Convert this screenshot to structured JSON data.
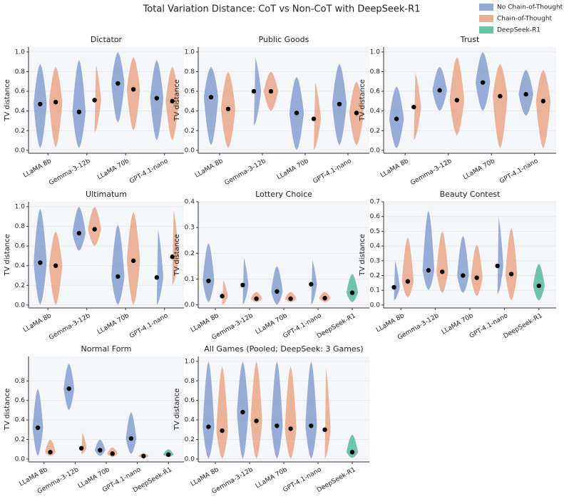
{
  "title": "Total Variation Distance: CoT vs Non-CoT with DeepSeek-R1",
  "legend": [
    {
      "name": "No Chain-of-Thought",
      "color": "#7f9bcf"
    },
    {
      "name": "Chain-of-Thought",
      "color": "#e8a281"
    },
    {
      "name": "DeepSeek-R1",
      "color": "#4fb896"
    }
  ],
  "chart_data": [
    {
      "type": "violin",
      "title": "Dictator",
      "ylabel": "TV distance",
      "grid": true,
      "categories": [
        "LLaMA 8b",
        "Gemma-3-12b",
        "LLaMA 70b",
        "GPT-4.1-nano"
      ],
      "ylim": [
        -0.03,
        1.05
      ],
      "yticks": [
        {
          "value": 0,
          "label": "0.0"
        },
        0.2,
        0.4,
        0.6,
        0.8,
        {
          "value": 1,
          "label": "1.0"
        }
      ],
      "series": [
        {
          "values": [
            0.47,
            0.39,
            0.68,
            0.53
          ],
          "mins": [
            0.02,
            0.02,
            0.28,
            0.1
          ],
          "maxs": [
            0.88,
            0.92,
            1.0,
            0.92
          ]
        },
        {
          "values": [
            0.49,
            0.51,
            0.62,
            0.5
          ],
          "mins": [
            0.03,
            0.18,
            0.2,
            0.1
          ],
          "maxs": [
            0.85,
            0.9,
            0.95,
            0.85
          ]
        }
      ]
    },
    {
      "type": "violin",
      "title": "Public Goods",
      "ylabel": "TV distance",
      "grid": true,
      "categories": [
        "LLaMA 8b",
        "Gemma-3-12b",
        "LLaMA 70b",
        "GPT-4.1-nano"
      ],
      "ylim": [
        -0.03,
        1.05
      ],
      "yticks": [
        {
          "value": 0,
          "label": "0.0"
        },
        0.2,
        0.4,
        0.6,
        0.8,
        {
          "value": 1,
          "label": "1.0"
        }
      ],
      "series": [
        {
          "values": [
            0.54,
            0.6,
            0.38,
            0.47
          ],
          "mins": [
            0.05,
            0.25,
            0.0,
            0.05
          ],
          "maxs": [
            0.85,
            0.97,
            0.75,
            0.88
          ]
        },
        {
          "values": [
            0.42,
            0.6,
            0.32,
            0.38
          ],
          "mins": [
            0.02,
            0.4,
            0.0,
            0.05
          ],
          "maxs": [
            0.8,
            0.8,
            0.72,
            0.7
          ]
        }
      ]
    },
    {
      "type": "violin",
      "title": "Trust",
      "ylabel": "TV distance",
      "grid": true,
      "categories": [
        "LLaMA 8b",
        "Gemma-3-12b",
        "LLaMA 70b",
        "GPT-4.1-nano"
      ],
      "ylim": [
        -0.03,
        1.05
      ],
      "yticks": [
        {
          "value": 0,
          "label": "0.0"
        },
        0.2,
        0.4,
        0.6,
        0.8,
        {
          "value": 1,
          "label": "1.0"
        }
      ],
      "series": [
        {
          "values": [
            0.32,
            0.61,
            0.69,
            0.57
          ],
          "mins": [
            0.02,
            0.4,
            0.4,
            0.35
          ],
          "maxs": [
            0.65,
            0.85,
            1.0,
            0.82
          ]
        },
        {
          "values": [
            0.44,
            0.51,
            0.55,
            0.5
          ],
          "mins": [
            0.1,
            0.15,
            0.02,
            0.02
          ],
          "maxs": [
            0.82,
            0.95,
            0.88,
            0.82
          ]
        }
      ]
    },
    {
      "type": "violin",
      "title": "Ultimatum",
      "ylabel": "TV distance",
      "grid": true,
      "categories": [
        "LLaMA 8b",
        "Gemma-3-12b",
        "LLaMA 70b",
        "GPT-4.1-nano"
      ],
      "ylim": [
        -0.03,
        1.05
      ],
      "yticks": [
        {
          "value": 0,
          "label": "0.0"
        },
        0.2,
        0.4,
        0.6,
        0.8,
        {
          "value": 1,
          "label": "1.0"
        }
      ],
      "series": [
        {
          "values": [
            0.43,
            0.73,
            0.29,
            0.28
          ],
          "mins": [
            0.0,
            0.55,
            0.0,
            0.0
          ],
          "maxs": [
            0.98,
            1.0,
            0.82,
            0.8
          ]
        },
        {
          "values": [
            0.4,
            0.77,
            0.45,
            0.49
          ],
          "mins": [
            0.0,
            0.6,
            0.0,
            0.2
          ],
          "maxs": [
            0.75,
            1.0,
            0.95,
            1.0
          ]
        }
      ]
    },
    {
      "type": "violin",
      "title": "Lottery Choice",
      "ylabel": "TV distance",
      "grid": true,
      "categories": [
        "LLaMA 8b",
        "Gemma-3-12b",
        "LLaMA 70b",
        "GPT-4.1-nano",
        "DeepSeek-R1"
      ],
      "ylim": [
        -0.012,
        0.4
      ],
      "yticks": [
        {
          "value": 0,
          "label": "0.0"
        },
        0.1,
        0.2,
        0.3,
        0.4
      ],
      "series": [
        {
          "values": [
            0.093,
            0.077,
            0.052,
            0.08,
            null
          ],
          "mins": [
            0.01,
            0.0,
            0.0,
            0.0,
            null
          ],
          "maxs": [
            0.24,
            0.19,
            0.15,
            0.18,
            null
          ]
        },
        {
          "values": [
            0.034,
            0.024,
            0.024,
            0.026,
            null
          ],
          "mins": [
            0.0,
            0.01,
            0.01,
            0.01,
            null
          ],
          "maxs": [
            0.1,
            0.05,
            0.05,
            0.05,
            null
          ]
        },
        {
          "values": [
            null,
            null,
            null,
            null,
            0.047
          ],
          "mins": [
            null,
            null,
            null,
            null,
            0.01
          ],
          "maxs": [
            null,
            null,
            null,
            null,
            0.12
          ]
        }
      ]
    },
    {
      "type": "violin",
      "title": "Beauty Contest",
      "ylabel": "TV distance",
      "grid": true,
      "categories": [
        "LLaMA 8b",
        "Gemma-3-12b",
        "LLaMA 70b",
        "GPT-4.1-nano",
        "DeepSeek-R1"
      ],
      "ylim": [
        -0.02,
        0.7
      ],
      "yticks": [
        {
          "value": 0,
          "label": "0.0"
        },
        0.1,
        0.2,
        0.3,
        0.4,
        0.5,
        0.6,
        0.7
      ],
      "series": [
        {
          "values": [
            0.12,
            0.235,
            0.2,
            0.265,
            null
          ],
          "mins": [
            0.03,
            0.1,
            0.08,
            0.07,
            null
          ],
          "maxs": [
            0.31,
            0.64,
            0.47,
            0.62,
            null
          ]
        },
        {
          "values": [
            0.16,
            0.225,
            0.185,
            0.21,
            null
          ],
          "mins": [
            0.05,
            0.08,
            0.06,
            0.03,
            null
          ],
          "maxs": [
            0.46,
            0.5,
            0.41,
            0.52,
            null
          ]
        },
        {
          "values": [
            null,
            null,
            null,
            null,
            0.13
          ],
          "mins": [
            null,
            null,
            null,
            null,
            0.03
          ],
          "maxs": [
            null,
            null,
            null,
            null,
            0.28
          ]
        }
      ]
    },
    {
      "type": "violin",
      "title": "Normal Form",
      "ylabel": "TV distance",
      "grid": true,
      "categories": [
        "LLaMA 8b",
        "Gemma-3-12b",
        "LLaMA 70b",
        "GPT-4.1-nano",
        "DeepSeek-R1"
      ],
      "ylim": [
        -0.03,
        1.05
      ],
      "yticks": [
        {
          "value": 0,
          "label": "0.0"
        },
        0.2,
        0.4,
        0.6,
        0.8
      ],
      "series": [
        {
          "values": [
            0.32,
            0.72,
            0.09,
            0.21,
            null
          ],
          "mins": [
            0.03,
            0.5,
            0.03,
            0.05,
            null
          ],
          "maxs": [
            0.72,
            0.98,
            0.2,
            0.48,
            null
          ]
        },
        {
          "values": [
            0.07,
            0.11,
            0.055,
            0.03,
            null
          ],
          "mins": [
            0.03,
            0.05,
            0.02,
            0.01,
            null
          ],
          "maxs": [
            0.2,
            0.28,
            0.12,
            0.06,
            null
          ]
        },
        {
          "values": [
            null,
            null,
            null,
            null,
            0.045
          ],
          "mins": [
            null,
            null,
            null,
            null,
            0.02
          ],
          "maxs": [
            null,
            null,
            null,
            null,
            0.1
          ]
        }
      ]
    },
    {
      "type": "violin",
      "title": "All Games (Pooled; DeepSeek: 3 Games)",
      "ylabel": "TV distance",
      "grid": true,
      "categories": [
        "LLaMA 8b",
        "Gemma-3-12b",
        "LLaMA 70b",
        "GPT-4.1-nano",
        "DeepSeek-R1"
      ],
      "ylim": [
        -0.03,
        1.05
      ],
      "yticks": [
        {
          "value": 0,
          "label": "0.0"
        },
        0.2,
        0.4,
        0.6,
        0.8,
        {
          "value": 1,
          "label": "1.0"
        }
      ],
      "series": [
        {
          "values": [
            0.33,
            0.48,
            0.34,
            0.34,
            null
          ],
          "mins": [
            0.0,
            0.0,
            0.0,
            0.0,
            null
          ],
          "maxs": [
            1.0,
            1.0,
            1.0,
            1.0,
            null
          ]
        },
        {
          "values": [
            0.29,
            0.39,
            0.31,
            0.3,
            null
          ],
          "mins": [
            0.0,
            0.0,
            0.0,
            0.0,
            null
          ],
          "maxs": [
            0.95,
            1.0,
            0.95,
            0.97,
            null
          ]
        },
        {
          "values": [
            null,
            null,
            null,
            null,
            0.07
          ],
          "mins": [
            null,
            null,
            null,
            null,
            0.01
          ],
          "maxs": [
            null,
            null,
            null,
            null,
            0.25
          ]
        }
      ]
    }
  ]
}
